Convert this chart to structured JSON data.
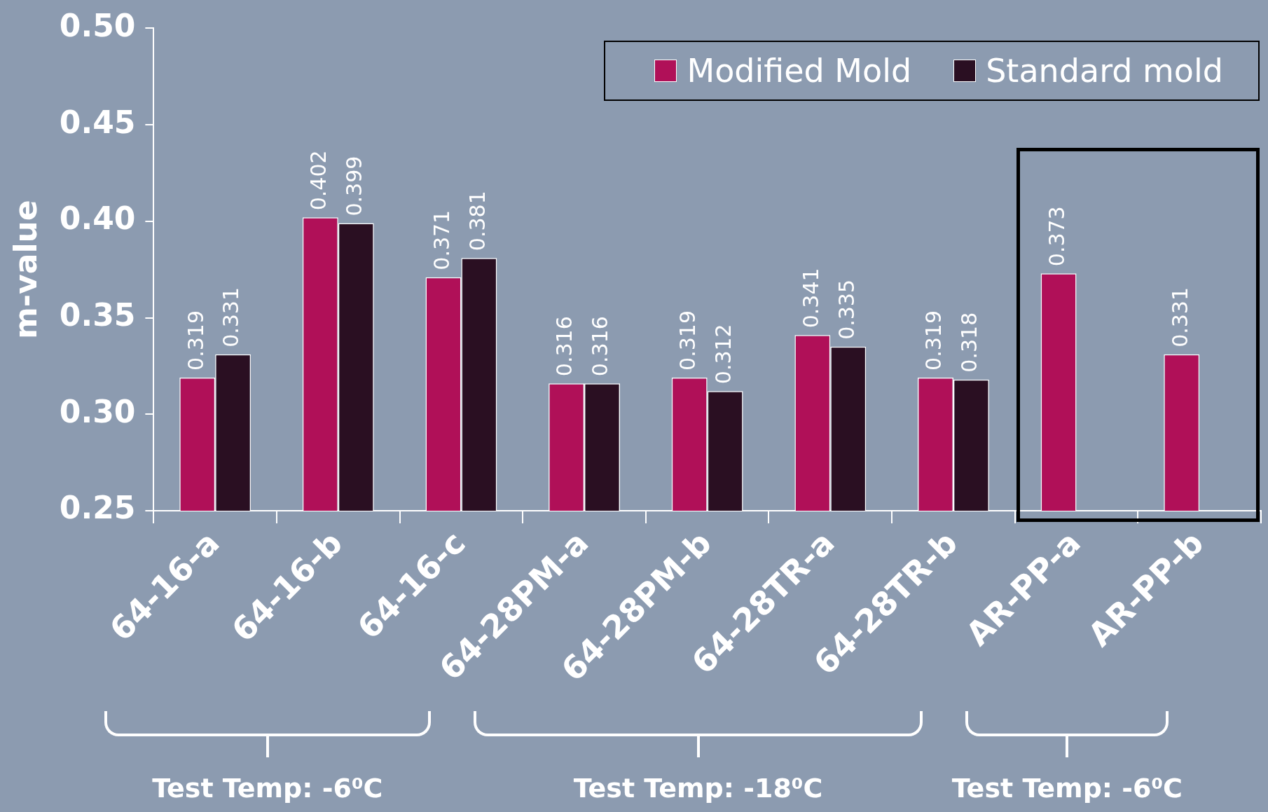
{
  "chart_data": {
    "type": "bar",
    "ylabel": "m-value",
    "categories": [
      "64-16-a",
      "64-16-b",
      "64-16-c",
      "64-28PM-a",
      "64-28PM-b",
      "64-28TR-a",
      "64-28TR-b",
      "AR-PP-a",
      "AR-PP-b"
    ],
    "series": [
      {
        "name": "Modified Mold",
        "color": "#b01058",
        "values": [
          0.319,
          0.402,
          0.371,
          0.316,
          0.319,
          0.341,
          0.319,
          0.373,
          0.331
        ]
      },
      {
        "name": "Standard mold",
        "color": "#2a0f22",
        "values": [
          0.331,
          0.399,
          0.381,
          0.316,
          0.312,
          0.335,
          0.318,
          null,
          null
        ]
      }
    ],
    "ylim": [
      0.25,
      0.5
    ],
    "yticks": [
      {
        "value": 0.25,
        "label": "0.25"
      },
      {
        "value": 0.3,
        "label": "0.30"
      },
      {
        "value": 0.35,
        "label": "0.35"
      },
      {
        "value": 0.4,
        "label": "0.40"
      },
      {
        "value": 0.45,
        "label": "0.45"
      },
      {
        "value": 0.5,
        "label": "0.50"
      }
    ],
    "grid": false,
    "legend": "top right",
    "data_labels": true,
    "annotations": [
      "Test Temp: -6⁰C",
      "Test Temp: -18⁰C",
      "Test Temp: -6⁰C"
    ]
  }
}
